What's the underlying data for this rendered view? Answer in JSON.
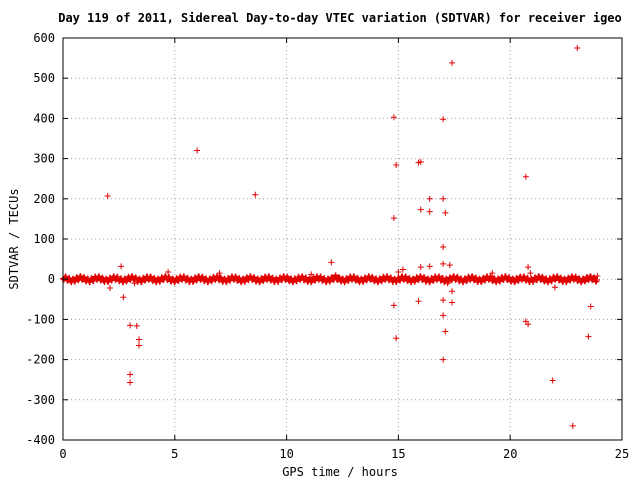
{
  "chart_data": {
    "type": "scatter",
    "title": "Day 119 of 2011, Sidereal Day-to-day VTEC variation (SDTVAR) for receiver igeo",
    "xlabel": "GPS time / hours",
    "ylabel": "SDTVAR / TECUs",
    "xlim": [
      0,
      25
    ],
    "ylim": [
      -400,
      600
    ],
    "xticks": [
      "0",
      "5",
      "10",
      "15",
      "20",
      "25"
    ],
    "yticks": [
      "600",
      "500",
      "400",
      "300",
      "200",
      "100",
      "0",
      "-100",
      "-200",
      "-300",
      "-400"
    ],
    "grid": true,
    "marker": "+",
    "color": "#e00000",
    "band": {
      "x_start": 0,
      "x_end": 23.9,
      "y_center": 0,
      "half_width": 8
    },
    "points": [
      [
        2.0,
        207
      ],
      [
        2.1,
        -22
      ],
      [
        2.6,
        32
      ],
      [
        2.7,
        -45
      ],
      [
        3.0,
        -115
      ],
      [
        3.0,
        -237
      ],
      [
        3.0,
        -257
      ],
      [
        3.3,
        -116
      ],
      [
        3.4,
        -150
      ],
      [
        3.4,
        -165
      ],
      [
        3.2,
        -10
      ],
      [
        4.7,
        18
      ],
      [
        6.0,
        320
      ],
      [
        7.0,
        15
      ],
      [
        8.6,
        210
      ],
      [
        11.1,
        12
      ],
      [
        12.0,
        42
      ],
      [
        12.2,
        10
      ],
      [
        14.8,
        403
      ],
      [
        14.8,
        152
      ],
      [
        14.9,
        284
      ],
      [
        14.8,
        -65
      ],
      [
        14.9,
        -147
      ],
      [
        15.0,
        18
      ],
      [
        15.2,
        24
      ],
      [
        15.9,
        290
      ],
      [
        16.0,
        292
      ],
      [
        16.0,
        173
      ],
      [
        16.4,
        200
      ],
      [
        16.4,
        168
      ],
      [
        15.9,
        -55
      ],
      [
        16.0,
        30
      ],
      [
        16.4,
        32
      ],
      [
        17.0,
        398
      ],
      [
        17.0,
        200
      ],
      [
        17.1,
        165
      ],
      [
        17.0,
        80
      ],
      [
        17.0,
        38
      ],
      [
        17.0,
        -52
      ],
      [
        17.0,
        -90
      ],
      [
        17.1,
        -130
      ],
      [
        17.0,
        -200
      ],
      [
        17.3,
        35
      ],
      [
        17.4,
        538
      ],
      [
        17.4,
        -30
      ],
      [
        17.4,
        -58
      ],
      [
        17.2,
        -10
      ],
      [
        19.2,
        15
      ],
      [
        20.7,
        255
      ],
      [
        20.8,
        30
      ],
      [
        20.7,
        -105
      ],
      [
        20.8,
        -112
      ],
      [
        20.9,
        15
      ],
      [
        21.9,
        -252
      ],
      [
        22.0,
        -20
      ],
      [
        22.8,
        -365
      ],
      [
        23.0,
        575
      ],
      [
        23.6,
        -68
      ],
      [
        23.5,
        -143
      ],
      [
        23.9,
        8
      ]
    ]
  }
}
